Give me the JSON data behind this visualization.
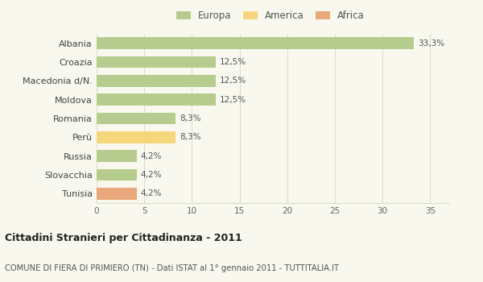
{
  "categories": [
    "Albania",
    "Croazia",
    "Macedonia d/N.",
    "Moldova",
    "Romania",
    "Perù",
    "Russia",
    "Slovacchia",
    "Tunisia"
  ],
  "values": [
    33.3,
    12.5,
    12.5,
    12.5,
    8.3,
    8.3,
    4.2,
    4.2,
    4.2
  ],
  "labels": [
    "33,3%",
    "12,5%",
    "12,5%",
    "12,5%",
    "8,3%",
    "8,3%",
    "4,2%",
    "4,2%",
    "4,2%"
  ],
  "continents": [
    "Europa",
    "Europa",
    "Europa",
    "Europa",
    "Europa",
    "America",
    "Europa",
    "Europa",
    "Africa"
  ],
  "colors": {
    "Europa": "#b5cc8e",
    "America": "#f5d67a",
    "Africa": "#e8a87c"
  },
  "xlim": [
    0,
    37
  ],
  "xticks": [
    0,
    5,
    10,
    15,
    20,
    25,
    30,
    35
  ],
  "title": "Cittadini Stranieri per Cittadinanza - 2011",
  "subtitle": "COMUNE DI FIERA DI PRIMIERO (TN) - Dati ISTAT al 1° gennaio 2011 - TUTTITALIA.IT",
  "background_color": "#f8f8ee",
  "bar_height": 0.62,
  "grid_color": "#ddddcc",
  "legend_order": [
    "Europa",
    "America",
    "Africa"
  ]
}
